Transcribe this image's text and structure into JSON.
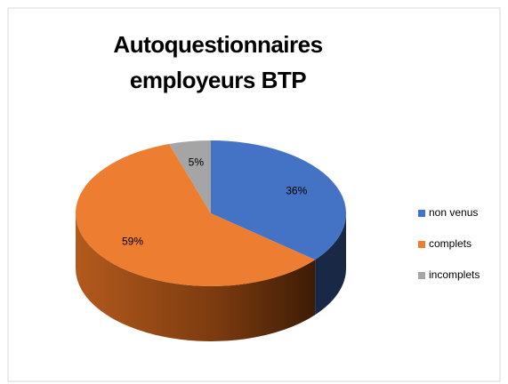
{
  "chart_data": {
    "type": "pie",
    "title": "Autoquestionnaires employeurs BTP",
    "categories": [
      "non venus",
      "complets",
      "incomplets"
    ],
    "values": [
      36,
      59,
      5
    ],
    "value_labels": [
      "36%",
      "59%",
      "5%"
    ],
    "colors": [
      "#4472c4",
      "#ed7d31",
      "#a5a5a5"
    ],
    "legend": "right"
  }
}
